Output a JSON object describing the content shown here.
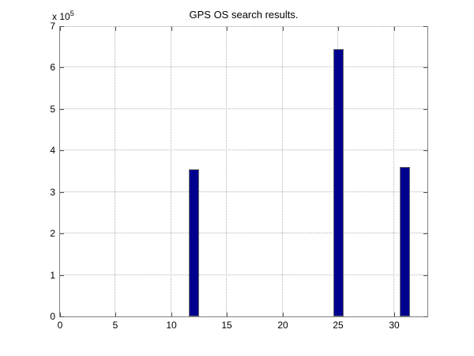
{
  "page": {
    "background": "#ffffff"
  },
  "chart_data": {
    "type": "bar",
    "title": "GPS OS search results.",
    "x": [
      12,
      25,
      31
    ],
    "values": [
      355000,
      645000,
      360000
    ],
    "xlabel": "",
    "ylabel": "",
    "xlim": [
      0,
      33
    ],
    "ylim": [
      0,
      700000
    ],
    "x_ticks": [
      0,
      5,
      10,
      15,
      20,
      25,
      30
    ],
    "x_tick_labels": [
      "0",
      "5",
      "10",
      "15",
      "20",
      "25",
      "30"
    ],
    "y_ticks": [
      0,
      100000,
      200000,
      300000,
      400000,
      500000,
      600000,
      700000
    ],
    "y_tick_labels": [
      "0",
      "1",
      "2",
      "3",
      "4",
      "5",
      "6",
      "7"
    ],
    "y_multiplier_base": "x 10",
    "y_multiplier_exponent": "5",
    "grid": true,
    "legend": null,
    "bar_width_units": 0.8,
    "colors": {
      "bar_fill": "#00008f",
      "bar_edge": "#6b6b6b",
      "axis": "#808080",
      "grid": "#b3b3b3",
      "tick": "#555555",
      "text": "#000000"
    }
  }
}
